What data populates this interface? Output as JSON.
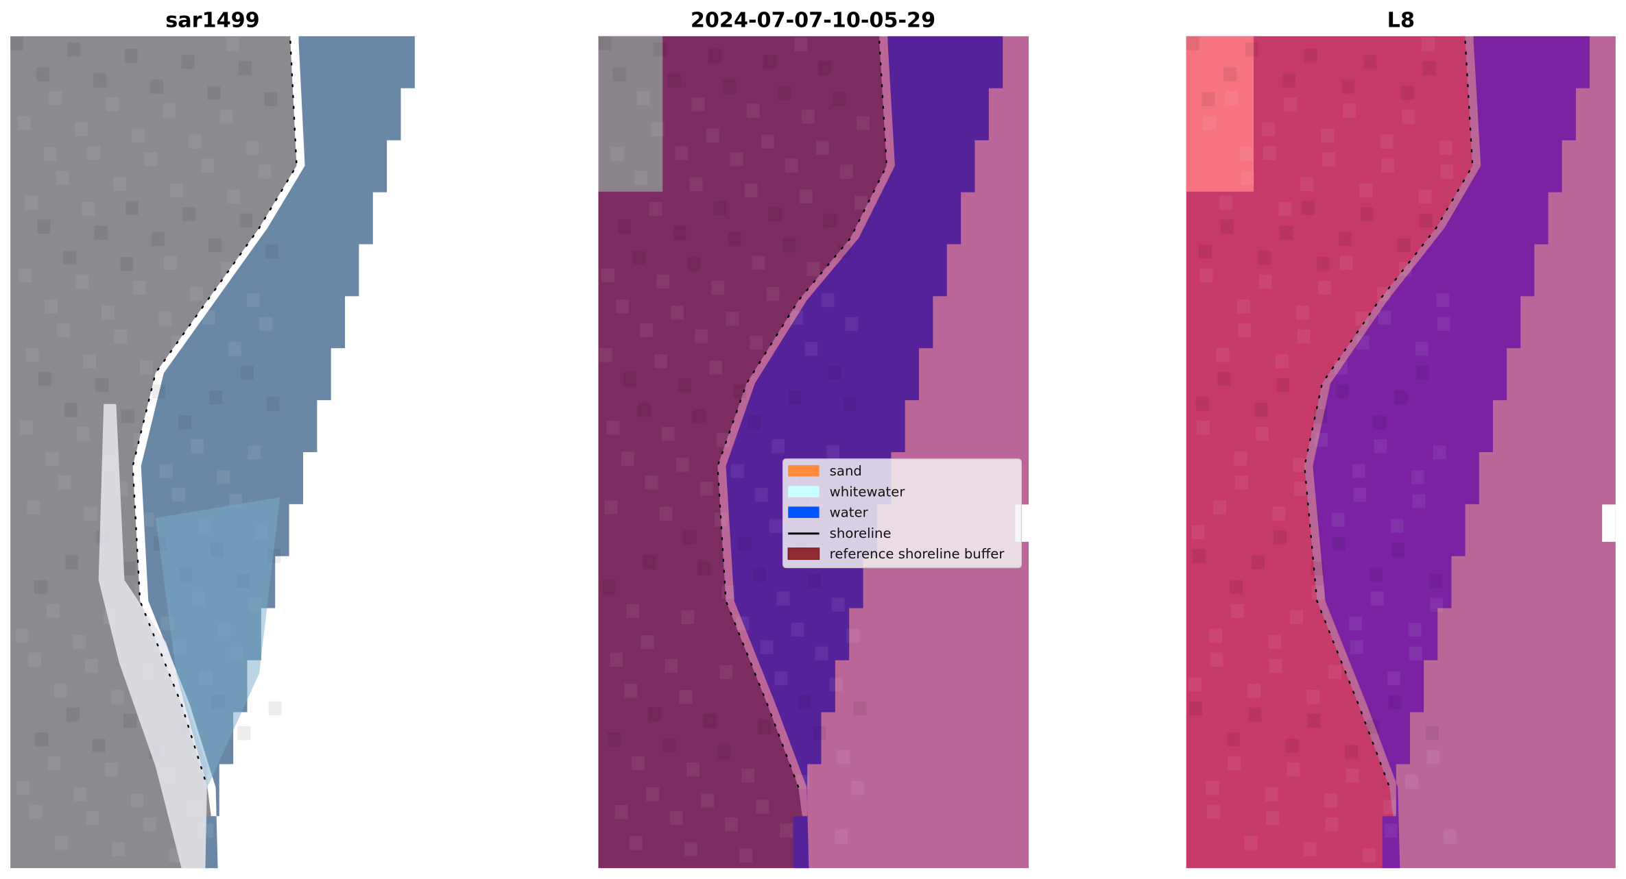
{
  "panels": [
    {
      "title": "sar1499",
      "land_color": "#8b8a8f",
      "water_color": "#6a88a6",
      "outside_color": "#ffffff",
      "corner_color": "#8b8a8f"
    },
    {
      "title": "2024-07-07-10-05-29",
      "land_color": "#7c2c60",
      "water_color": "#55229a",
      "outside_color": "#ba6698",
      "corner_color": "#8e8e92"
    },
    {
      "title": "L8",
      "land_color": "#c63a6a",
      "water_color": "#7a22a2",
      "outside_color": "#ba6698",
      "corner_color": "#fb7a84"
    }
  ],
  "legend": {
    "items": [
      {
        "label": "sand",
        "color": "#ff8c3a",
        "kind": "patch"
      },
      {
        "label": "whitewater",
        "color": "#c8ffff",
        "kind": "patch"
      },
      {
        "label": "water",
        "color": "#0055ff",
        "kind": "patch"
      },
      {
        "label": "shoreline",
        "color": "#000000",
        "kind": "line"
      },
      {
        "label": "reference shoreline buffer",
        "color": "#922b32",
        "kind": "patch"
      }
    ]
  }
}
